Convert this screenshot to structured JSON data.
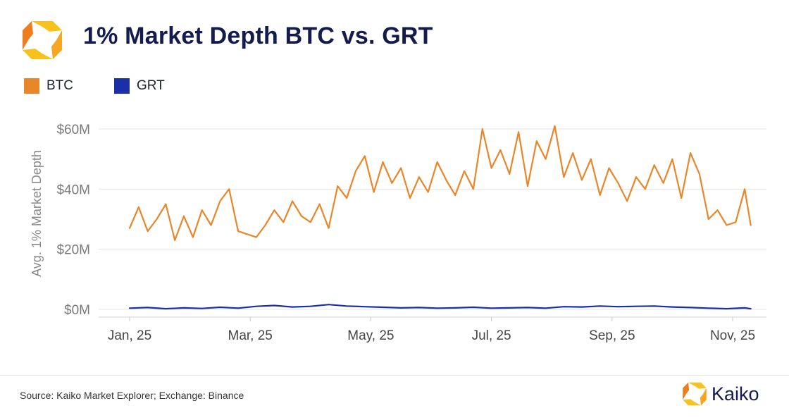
{
  "header": {
    "title": "1% Market Depth BTC vs. GRT"
  },
  "legend": [
    {
      "label": "BTC",
      "color": "#e8862a"
    },
    {
      "label": "GRT",
      "color": "#1b2fa6"
    }
  ],
  "footer": {
    "source": "Source: Kaiko Market Explorer; Exchange: Binance",
    "brand": "Kaiko"
  },
  "colors": {
    "accent_orange": "#f5a623",
    "accent_yellow": "#f7c21d",
    "navy": "#141b4d"
  },
  "chart_data": {
    "type": "line",
    "title": "1% Market Depth BTC vs. GRT",
    "xlabel": "",
    "ylabel": "Avg. 1% Market Depth",
    "x_ticks": [
      {
        "label": "Jan, 25",
        "x": 0
      },
      {
        "label": "Mar, 25",
        "x": 2
      },
      {
        "label": "May, 25",
        "x": 4
      },
      {
        "label": "Jul, 25",
        "x": 6
      },
      {
        "label": "Sep, 25",
        "x": 8
      },
      {
        "label": "Nov, 25",
        "x": 10
      }
    ],
    "xlim": [
      0,
      10.35
    ],
    "y_ticks": [
      {
        "label": "$0M",
        "value": 0
      },
      {
        "label": "$20M",
        "value": 20
      },
      {
        "label": "$40M",
        "value": 40
      },
      {
        "label": "$60M",
        "value": 60
      }
    ],
    "ylim": [
      -2,
      61
    ],
    "grid": true,
    "series": [
      {
        "name": "BTC",
        "color": "#e8862a",
        "x": [
          0,
          0.15,
          0.3,
          0.45,
          0.6,
          0.75,
          0.9,
          1.05,
          1.2,
          1.35,
          1.5,
          1.65,
          1.8,
          1.95,
          2.1,
          2.25,
          2.4,
          2.55,
          2.7,
          2.85,
          3.0,
          3.15,
          3.3,
          3.45,
          3.6,
          3.75,
          3.9,
          4.05,
          4.2,
          4.35,
          4.5,
          4.65,
          4.8,
          4.95,
          5.1,
          5.25,
          5.4,
          5.55,
          5.7,
          5.85,
          6.0,
          6.15,
          6.3,
          6.45,
          6.6,
          6.75,
          6.9,
          7.05,
          7.2,
          7.35,
          7.5,
          7.65,
          7.8,
          7.95,
          8.1,
          8.25,
          8.4,
          8.55,
          8.7,
          8.85,
          9.0,
          9.15,
          9.3,
          9.45,
          9.6,
          9.75,
          9.9,
          10.05,
          10.2,
          10.3
        ],
        "values": [
          27,
          34,
          26,
          30,
          35,
          23,
          31,
          24,
          33,
          28,
          36,
          40,
          26,
          25,
          24,
          28,
          33,
          29,
          36,
          31,
          29,
          35,
          27,
          41,
          37,
          46,
          51,
          39,
          49,
          42,
          47,
          37,
          44,
          39,
          49,
          43,
          38,
          46,
          40,
          60,
          47,
          53,
          45,
          59,
          41,
          56,
          50,
          61,
          44,
          52,
          43,
          50,
          38,
          47,
          42,
          36,
          44,
          40,
          48,
          42,
          50,
          37,
          52,
          45,
          30,
          33,
          28,
          29,
          40,
          28
        ]
      },
      {
        "name": "GRT",
        "color": "#1b2fa6",
        "x": [
          0,
          0.3,
          0.6,
          0.9,
          1.2,
          1.5,
          1.8,
          2.1,
          2.4,
          2.7,
          3.0,
          3.3,
          3.6,
          3.9,
          4.2,
          4.5,
          4.8,
          5.1,
          5.4,
          5.7,
          6.0,
          6.3,
          6.6,
          6.9,
          7.2,
          7.5,
          7.8,
          8.1,
          8.4,
          8.7,
          9.0,
          9.3,
          9.6,
          9.9,
          10.2,
          10.3
        ],
        "values": [
          0.4,
          0.6,
          0.2,
          0.5,
          0.3,
          0.7,
          0.4,
          1.0,
          1.3,
          0.8,
          1.0,
          1.6,
          1.1,
          0.9,
          0.7,
          0.5,
          0.6,
          0.4,
          0.5,
          0.7,
          0.4,
          0.5,
          0.6,
          0.4,
          0.9,
          0.8,
          1.1,
          0.9,
          1.0,
          1.1,
          0.8,
          0.6,
          0.4,
          0.2,
          0.5,
          0.2
        ]
      }
    ]
  }
}
